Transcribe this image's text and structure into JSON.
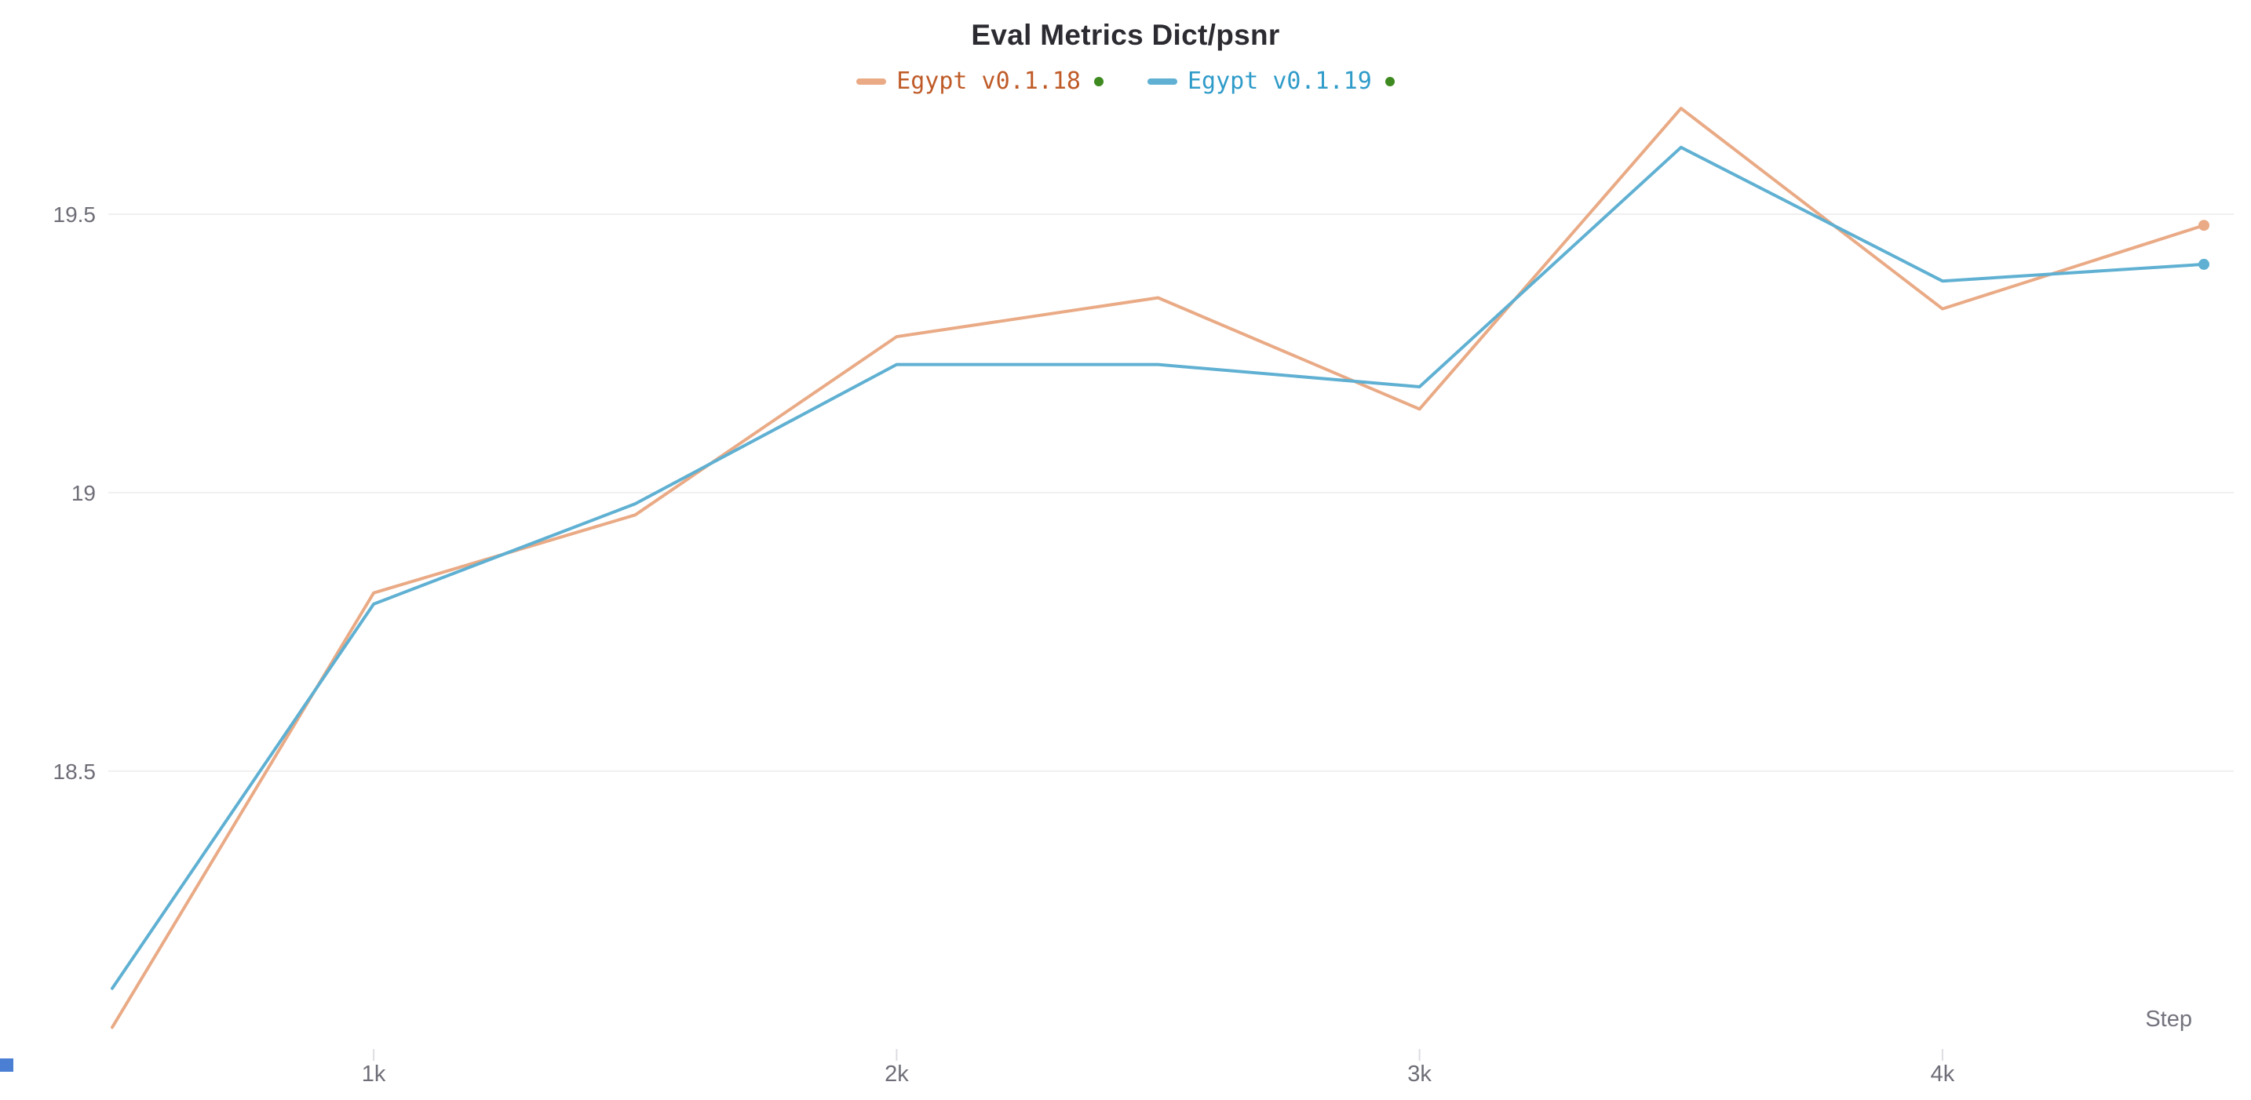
{
  "chart_data": {
    "type": "line",
    "title": "Eval Metrics Dict/psnr",
    "xlabel": "Step",
    "x": [
      500,
      1000,
      1500,
      2000,
      2500,
      3000,
      3500,
      4000,
      4500
    ],
    "series": [
      {
        "name": "Egypt v0.1.18",
        "color": "#e9aa85",
        "label_color": "#bf5b28",
        "values": [
          18.04,
          18.82,
          18.96,
          19.28,
          19.35,
          19.15,
          19.69,
          19.33,
          19.48
        ]
      },
      {
        "name": "Egypt v0.1.19",
        "color": "#5fb0d2",
        "label_color": "#2f9bc9",
        "values": [
          18.11,
          18.8,
          18.98,
          19.23,
          19.23,
          19.19,
          19.62,
          19.38,
          19.41
        ]
      }
    ],
    "x_ticks": [
      {
        "value": 1000,
        "label": "1k"
      },
      {
        "value": 2000,
        "label": "2k"
      },
      {
        "value": 3000,
        "label": "3k"
      },
      {
        "value": 4000,
        "label": "4k"
      }
    ],
    "y_ticks": [
      {
        "value": 18.5,
        "label": "18.5"
      },
      {
        "value": 19.0,
        "label": "19"
      },
      {
        "value": 19.5,
        "label": "19.5"
      }
    ],
    "xlim": [
      500,
      4500
    ],
    "ylim": [
      17.98,
      19.8
    ],
    "grid": "horizontal",
    "legend_position": "top"
  },
  "ui": {
    "run_state_dot_color": "#3e8a20",
    "corner_handle_color": "#4a7fd4",
    "grid_color": "#f0f0f0",
    "tick_color": "#dddde2",
    "axis_label_color": "#6e6e78",
    "step_label_color": "#73737e",
    "title_color": "#2b2b31",
    "background_color": "#ffffff"
  }
}
